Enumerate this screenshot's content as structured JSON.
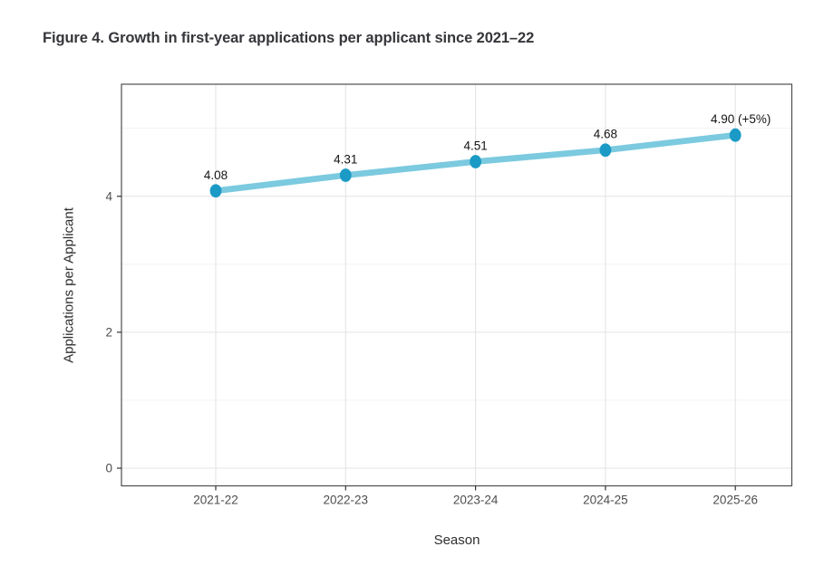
{
  "figure": {
    "title": "Figure 4. Growth in first-year applications per applicant since 2021–22"
  },
  "chart_data": {
    "type": "line",
    "title": "Figure 4. Growth in first-year applications per applicant since 2021–22",
    "xlabel": "Season",
    "ylabel": "Applications per Applicant",
    "categories": [
      "2021-22",
      "2022-23",
      "2023-24",
      "2024-25",
      "2025-26"
    ],
    "values": [
      4.08,
      4.31,
      4.51,
      4.68,
      4.9
    ],
    "point_labels": [
      "4.08",
      "4.31",
      "4.51",
      "4.68",
      "4.90 (+5%)"
    ],
    "y_ticks": [
      0,
      2,
      4
    ],
    "y_minor_gridlines": [
      1,
      3,
      5
    ],
    "ylim": [
      -0.25,
      5.65
    ],
    "legend_position": "none",
    "grid": "horizontal major+minor, vertical major only",
    "colors": {
      "line": "#7bcadf",
      "point": "#1b9ac6",
      "grid_major": "#e4e4e4",
      "grid_minor": "#f0f0f0",
      "panel_border": "#4d4d4d",
      "tick": "#333333",
      "axis_text": "#4d4d4d",
      "label_text": "#141414",
      "title_text": "#35363a"
    }
  }
}
